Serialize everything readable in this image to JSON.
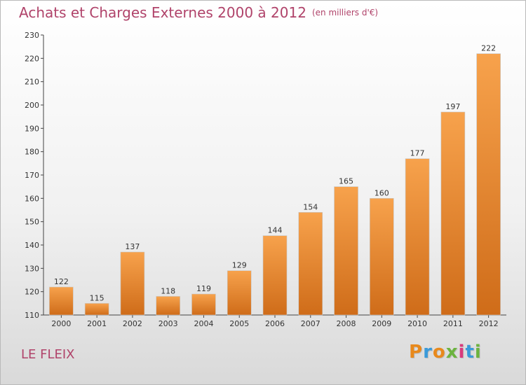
{
  "header": {
    "title": "Achats et Charges Externes 2000 à 2012",
    "unit": "(en milliers d'€)"
  },
  "footer": {
    "commune": "LE FLEIX",
    "brand_letters": [
      "P",
      "r",
      "o",
      "x",
      "i",
      "t",
      "i"
    ],
    "brand_colors": [
      "#e8891c",
      "#3a9ad9",
      "#e8891c",
      "#6cb33f",
      "#d93a7c",
      "#3a9ad9",
      "#6cb33f"
    ]
  },
  "chart_data": {
    "type": "bar",
    "categories": [
      "2000",
      "2001",
      "2002",
      "2003",
      "2004",
      "2005",
      "2006",
      "2007",
      "2008",
      "2009",
      "2010",
      "2011",
      "2012"
    ],
    "values": [
      122,
      115,
      137,
      118,
      119,
      129,
      144,
      154,
      165,
      160,
      177,
      197,
      222
    ],
    "ylim": [
      110,
      230
    ],
    "yticks": [
      110,
      120,
      130,
      140,
      150,
      160,
      170,
      180,
      190,
      200,
      210,
      220,
      230
    ],
    "title": "Achats et Charges Externes 2000 à 2012",
    "xlabel": "",
    "ylabel": "",
    "grid": false,
    "bar_color": "#f0943a",
    "bar_color_dark": "#d9731b"
  }
}
